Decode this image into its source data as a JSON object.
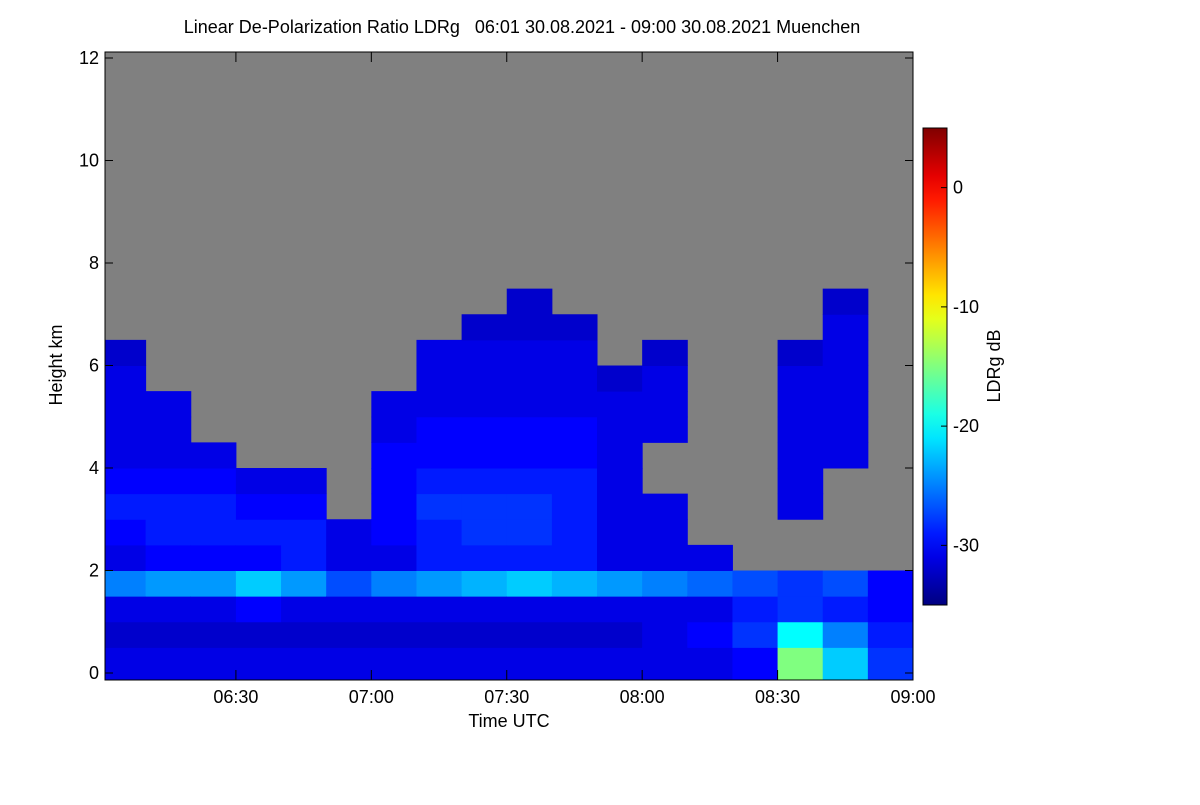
{
  "chart_data": {
    "type": "heatmap",
    "title": "Linear De-Polarization Ratio LDRg   06:01 30.08.2021 - 09:00 30.08.2021 Muenchen",
    "x_label": "Time UTC",
    "y_label": "Height km",
    "colorbar_label": "LDRg dB",
    "colormap": "jet",
    "null_color": "#808080",
    "xlim": [
      361,
      540
    ],
    "xticks": [
      {
        "value": 390,
        "label": "06:30"
      },
      {
        "value": 420,
        "label": "07:00"
      },
      {
        "value": 450,
        "label": "07:30"
      },
      {
        "value": 480,
        "label": "08:00"
      },
      {
        "value": 510,
        "label": "08:30"
      },
      {
        "value": 540,
        "label": "09:00"
      }
    ],
    "ylim": [
      0,
      12
    ],
    "yticks": [
      0,
      2,
      4,
      6,
      8,
      10,
      12
    ],
    "zlim": [
      -35,
      5
    ],
    "zticks": [
      -30,
      -20,
      -10,
      0
    ],
    "x_edges": [
      361,
      370,
      380,
      390,
      400,
      410,
      420,
      430,
      440,
      450,
      460,
      470,
      480,
      490,
      500,
      510,
      520,
      530,
      540
    ],
    "y_edges": [
      0,
      0.5,
      1,
      1.5,
      2,
      2.5,
      3,
      3.5,
      4,
      4.5,
      5,
      5.5,
      6,
      6.5,
      7,
      7.5,
      8,
      8.5,
      9,
      9.5,
      10,
      10.5,
      11,
      11.5,
      12
    ],
    "values": [
      [
        -31,
        -32,
        -31,
        -25,
        -31,
        -30,
        -29,
        -30,
        -31,
        -31,
        -31,
        -31,
        -32,
        null,
        null,
        null,
        null,
        null,
        null,
        null,
        null,
        null,
        null,
        null
      ],
      [
        -31,
        -32,
        -31,
        -24,
        -30,
        -29,
        -29,
        -30,
        -31,
        -31,
        -31,
        null,
        null,
        null,
        null,
        null,
        null,
        null,
        null,
        null,
        null,
        null,
        null,
        null
      ],
      [
        -31,
        -32,
        -31,
        -24,
        -30,
        -29,
        -29,
        -30,
        -31,
        null,
        null,
        null,
        null,
        null,
        null,
        null,
        null,
        null,
        null,
        null,
        null,
        null,
        null,
        null
      ],
      [
        -31,
        -32,
        -30,
        -22,
        -30,
        -29,
        -30,
        -31,
        null,
        null,
        null,
        null,
        null,
        null,
        null,
        null,
        null,
        null,
        null,
        null,
        null,
        null,
        null,
        null
      ],
      [
        -31,
        -32,
        -31,
        -24,
        -29,
        -29,
        -30,
        -31,
        null,
        null,
        null,
        null,
        null,
        null,
        null,
        null,
        null,
        null,
        null,
        null,
        null,
        null,
        null,
        null
      ],
      [
        -31,
        -32,
        -31,
        -27,
        -31,
        -31,
        null,
        null,
        null,
        null,
        null,
        null,
        null,
        null,
        null,
        null,
        null,
        null,
        null,
        null,
        null,
        null,
        null,
        null
      ],
      [
        -31,
        -32,
        -31,
        -25,
        -31,
        -30,
        -30,
        -30,
        -30,
        -31,
        -31,
        null,
        null,
        null,
        null,
        null,
        null,
        null,
        null,
        null,
        null,
        null,
        null,
        null
      ],
      [
        -31,
        -32,
        -31,
        -24,
        -29,
        -29,
        -28,
        -29,
        -30,
        -30,
        -31,
        -31,
        -31,
        null,
        null,
        null,
        null,
        null,
        null,
        null,
        null,
        null,
        null,
        null
      ],
      [
        -31,
        -32,
        -31,
        -23,
        -29,
        -28,
        -28,
        -29,
        -30,
        -30,
        -31,
        -31,
        -31,
        -32,
        null,
        null,
        null,
        null,
        null,
        null,
        null,
        null,
        null,
        null
      ],
      [
        -31,
        -32,
        -31,
        -22,
        -29,
        -28,
        -28,
        -29,
        -30,
        -30,
        -31,
        -31,
        -31,
        -32,
        -32,
        null,
        null,
        null,
        null,
        null,
        null,
        null,
        null,
        null
      ],
      [
        -31,
        -32,
        -31,
        -23,
        -29,
        -29,
        -29,
        -29,
        -30,
        -30,
        -31,
        -31,
        -31,
        -32,
        null,
        null,
        null,
        null,
        null,
        null,
        null,
        null,
        null,
        null
      ],
      [
        -31,
        -32,
        -31,
        -24,
        -31,
        -31,
        -31,
        -31,
        -31,
        -31,
        -31,
        -32,
        null,
        null,
        null,
        null,
        null,
        null,
        null,
        null,
        null,
        null,
        null,
        null
      ],
      [
        -31,
        -31,
        -31,
        -25,
        -31,
        -31,
        -31,
        null,
        null,
        -31,
        -31,
        -31,
        -32,
        null,
        null,
        null,
        null,
        null,
        null,
        null,
        null,
        null,
        null,
        null
      ],
      [
        -31,
        -30,
        -31,
        -26,
        -31,
        null,
        null,
        null,
        null,
        null,
        null,
        null,
        null,
        null,
        null,
        null,
        null,
        null,
        null,
        null,
        null,
        null,
        null,
        null
      ],
      [
        -30,
        -28,
        -29,
        -27,
        null,
        null,
        null,
        null,
        null,
        null,
        null,
        null,
        null,
        null,
        null,
        null,
        null,
        null,
        null,
        null,
        null,
        null,
        null,
        null
      ],
      [
        -15,
        -20,
        -28,
        -28,
        null,
        null,
        -31,
        -31,
        -31,
        -31,
        -31,
        -31,
        -32,
        null,
        null,
        null,
        null,
        null,
        null,
        null,
        null,
        null,
        null,
        null
      ],
      [
        -22,
        -25,
        -29,
        -27,
        null,
        null,
        null,
        null,
        -31,
        -31,
        -31,
        -31,
        -31,
        -31,
        -32,
        null,
        null,
        null,
        null,
        null,
        null,
        null,
        null,
        null
      ],
      [
        -28,
        -29,
        -30,
        -30,
        null,
        null,
        null,
        null,
        null,
        null,
        null,
        null,
        null,
        null,
        null,
        null,
        null,
        null,
        null,
        null,
        null,
        null,
        null,
        null
      ]
    ]
  }
}
